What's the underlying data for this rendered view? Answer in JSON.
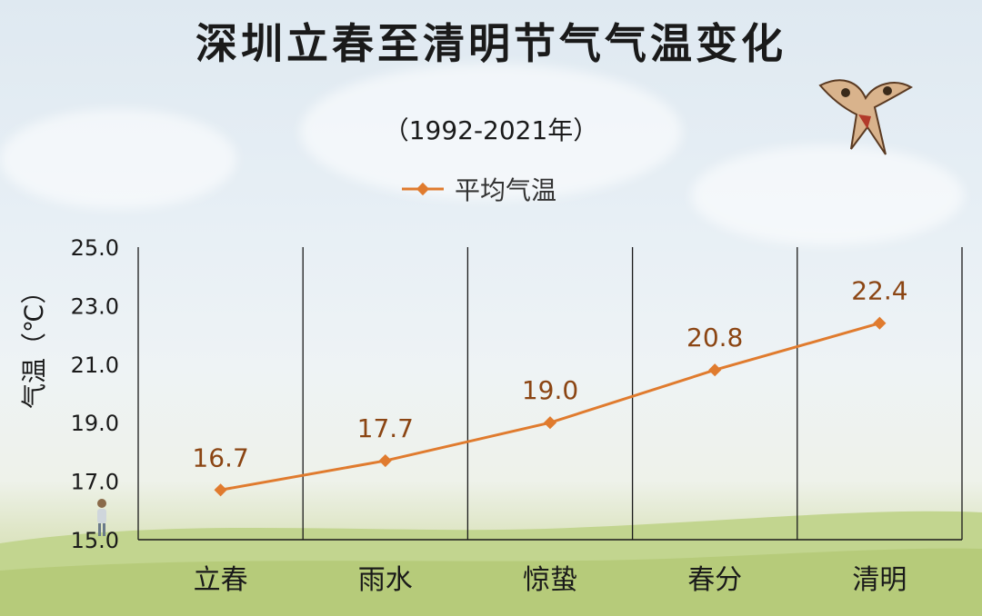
{
  "title": "深圳立春至清明节气气温变化",
  "subtitle": "（1992-2021年）",
  "ylabel": "气温（℃）",
  "legend": {
    "label": "平均气温",
    "color": "#e07b2e"
  },
  "chart_data": {
    "type": "line",
    "title": "深圳立春至清明节气气温变化",
    "subtitle": "（1992-2021年）",
    "xlabel": "",
    "ylabel": "气温（℃）",
    "categories": [
      "立春",
      "雨水",
      "惊蛰",
      "春分",
      "清明"
    ],
    "series": [
      {
        "name": "平均气温",
        "values": [
          16.7,
          17.7,
          19.0,
          20.8,
          22.4
        ],
        "color": "#e07b2e"
      }
    ],
    "ylim": [
      15.0,
      25.0
    ],
    "yticks": [
      "15.0",
      "17.0",
      "19.0",
      "21.0",
      "23.0",
      "25.0"
    ],
    "data_labels": [
      "16.7",
      "17.7",
      "19.0",
      "20.8",
      "22.4"
    ],
    "data_label_color": "#8b4513",
    "legend_position": "top",
    "grid": "vertical category separators"
  }
}
